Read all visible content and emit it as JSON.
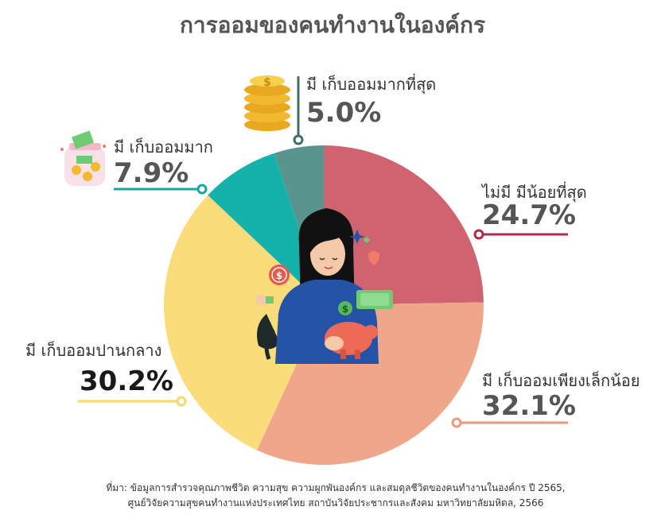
{
  "chart_data": {
    "type": "pie",
    "title": "การออมของคนทำงานในองค์กร",
    "slices": [
      {
        "label": "ไม่มี มีน้อยที่สุด",
        "value": 24.7,
        "display": "24.7%",
        "color": "#cf6470"
      },
      {
        "label": "มี เก็บออมเพียงเล็กน้อย",
        "value": 32.1,
        "display": "32.1%",
        "color": "#efa68b"
      },
      {
        "label": "มี เก็บออมปานกลาง",
        "value": 30.2,
        "display": "30.2%",
        "color": "#fbdc7b"
      },
      {
        "label": "มี เก็บออมมาก",
        "value": 7.9,
        "display": "7.9%",
        "color": "#14b2ab"
      },
      {
        "label": "มี เก็บออมมากที่สุด",
        "value": 5.0,
        "display": "5.0%",
        "color": "#5a948f"
      }
    ],
    "leader_colors": [
      "#b02a42",
      "#e99a80",
      "#f7d86a",
      "#17a7a1",
      "#3f6f6d"
    ]
  },
  "source_line1": "ที่มา: ข้อมูลการสำรวจคุณภาพชีวิต ความสุข ความผูกพันองค์กร และสมดุลชีวิตของคนทำงานในองค์กร ปี 2565,",
  "source_line2": "ศูนย์วิจัยความสุขคนทำงานแห่งประเทศไทย สถาบันวิจัยประชากรและสังคม มหาวิทยาลัยมหิดล, 2566"
}
